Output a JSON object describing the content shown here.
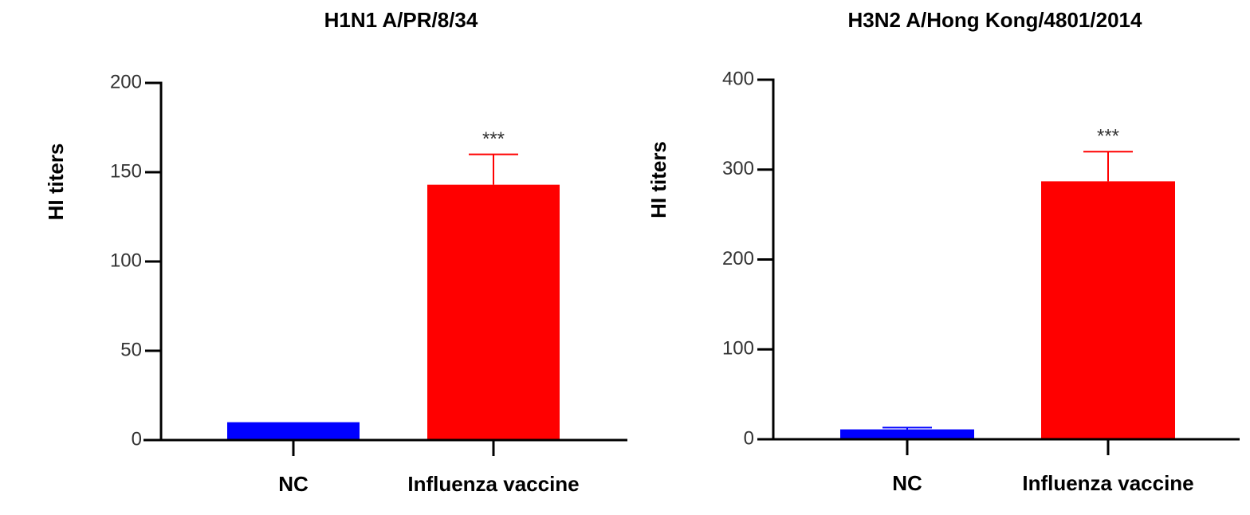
{
  "chart_data": [
    {
      "type": "bar",
      "title": "H1N1 A/PR/8/34",
      "y_label": "HI titers",
      "categories": [
        "NC",
        "Influenza vaccine"
      ],
      "values": [
        10,
        143
      ],
      "errors": [
        null,
        17
      ],
      "colors": [
        "#0000ff",
        "#ff0000"
      ],
      "annotations": [
        null,
        "***"
      ],
      "ylim": [
        0,
        200
      ],
      "yticks": [
        0,
        50,
        100,
        150,
        200
      ]
    },
    {
      "type": "bar",
      "title": "H3N2 A/Hong Kong/4801/2014",
      "y_label": "HI titers",
      "categories": [
        "NC",
        "Influenza vaccine"
      ],
      "values": [
        11,
        287
      ],
      "errors": [
        2,
        33
      ],
      "colors": [
        "#0000ff",
        "#ff0000"
      ],
      "annotations": [
        null,
        "***"
      ],
      "ylim": [
        0,
        400
      ],
      "yticks": [
        0,
        100,
        200,
        300,
        400
      ]
    }
  ]
}
